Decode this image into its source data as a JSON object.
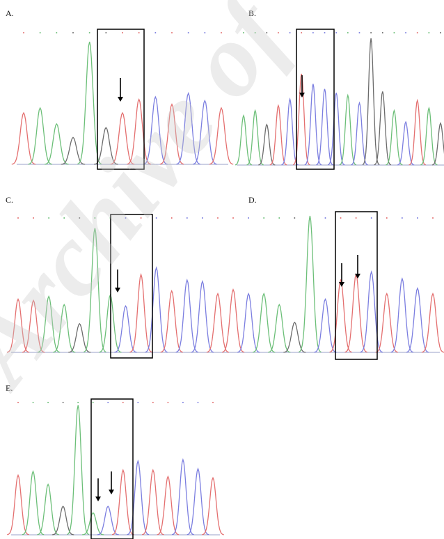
{
  "panels": [
    {
      "label": "A.",
      "peaks": [
        {
          "c": "r",
          "h": 0.42
        },
        {
          "c": "g",
          "h": 0.46
        },
        {
          "c": "g",
          "h": 0.33
        },
        {
          "c": "k",
          "h": 0.22
        },
        {
          "c": "g",
          "h": 1.0
        },
        {
          "c": "k",
          "h": 0.3
        },
        {
          "c": "r",
          "h": 0.42
        },
        {
          "c": "r",
          "h": 0.53
        },
        {
          "c": "b",
          "h": 0.55
        },
        {
          "c": "r",
          "h": 0.49
        },
        {
          "c": "b",
          "h": 0.58
        },
        {
          "c": "b",
          "h": 0.52
        },
        {
          "c": "r",
          "h": 0.46
        }
      ]
    },
    {
      "label": "B.",
      "peaks": [
        {
          "c": "g",
          "h": 0.39
        },
        {
          "c": "g",
          "h": 0.43
        },
        {
          "c": "k",
          "h": 0.32
        },
        {
          "c": "r",
          "h": 0.47
        },
        {
          "c": "b",
          "h": 0.52
        },
        {
          "c": "r",
          "h": 0.72
        },
        {
          "c": "b",
          "h": 0.64
        },
        {
          "c": "b",
          "h": 0.6
        },
        {
          "c": "b",
          "h": 0.57
        },
        {
          "c": "g",
          "h": 0.55
        },
        {
          "c": "b",
          "h": 0.49
        },
        {
          "c": "k",
          "h": 1.0
        },
        {
          "c": "k",
          "h": 0.58
        },
        {
          "c": "g",
          "h": 0.43
        },
        {
          "c": "b",
          "h": 0.34
        },
        {
          "c": "r",
          "h": 0.51
        },
        {
          "c": "g",
          "h": 0.45
        },
        {
          "c": "k",
          "h": 0.33
        }
      ]
    },
    {
      "label": "C.",
      "peaks": [
        {
          "c": "r",
          "h": 0.39
        },
        {
          "c": "r",
          "h": 0.38
        },
        {
          "c": "g",
          "h": 0.41
        },
        {
          "c": "g",
          "h": 0.35
        },
        {
          "c": "k",
          "h": 0.21
        },
        {
          "c": "g",
          "h": 0.91
        },
        {
          "c": "g",
          "h": 0.42
        },
        {
          "c": "b",
          "h": 0.34
        },
        {
          "c": "r",
          "h": 0.57
        },
        {
          "c": "b",
          "h": 0.62
        },
        {
          "c": "r",
          "h": 0.45
        },
        {
          "c": "b",
          "h": 0.53
        },
        {
          "c": "b",
          "h": 0.52
        },
        {
          "c": "r",
          "h": 0.43
        },
        {
          "c": "r",
          "h": 0.46
        },
        {
          "c": "b",
          "h": 0.43
        },
        {
          "c": "g",
          "h": 0.43
        },
        {
          "c": "g",
          "h": 0.35
        },
        {
          "c": "k",
          "h": 0.22
        },
        {
          "c": "g",
          "h": 1.0
        },
        {
          "c": "b",
          "h": 0.39
        },
        {
          "c": "r",
          "h": 0.53
        },
        {
          "c": "r",
          "h": 0.57
        },
        {
          "c": "b",
          "h": 0.59
        },
        {
          "c": "r",
          "h": 0.43
        },
        {
          "c": "b",
          "h": 0.54
        },
        {
          "c": "b",
          "h": 0.47
        },
        {
          "c": "r",
          "h": 0.43
        }
      ]
    },
    {
      "label": "E.",
      "peaks": [
        {
          "c": "r",
          "h": 0.46
        },
        {
          "c": "g",
          "h": 0.49
        },
        {
          "c": "g",
          "h": 0.39
        },
        {
          "c": "k",
          "h": 0.22
        },
        {
          "c": "g",
          "h": 1.0
        },
        {
          "c": "g",
          "h": 0.17
        },
        {
          "c": "b",
          "h": 0.22
        },
        {
          "c": "r",
          "h": 0.5
        },
        {
          "c": "b",
          "h": 0.57
        },
        {
          "c": "r",
          "h": 0.5
        },
        {
          "c": "r",
          "h": 0.45
        },
        {
          "c": "b",
          "h": 0.58
        },
        {
          "c": "b",
          "h": 0.51
        },
        {
          "c": "r",
          "h": 0.44
        }
      ]
    }
  ],
  "panel_d_label": "D.",
  "watermark": "Archive of",
  "colors": {
    "r": "#e46f6f",
    "g": "#6cbf78",
    "b": "#7b7ee0",
    "k": "#6b6b6b"
  }
}
